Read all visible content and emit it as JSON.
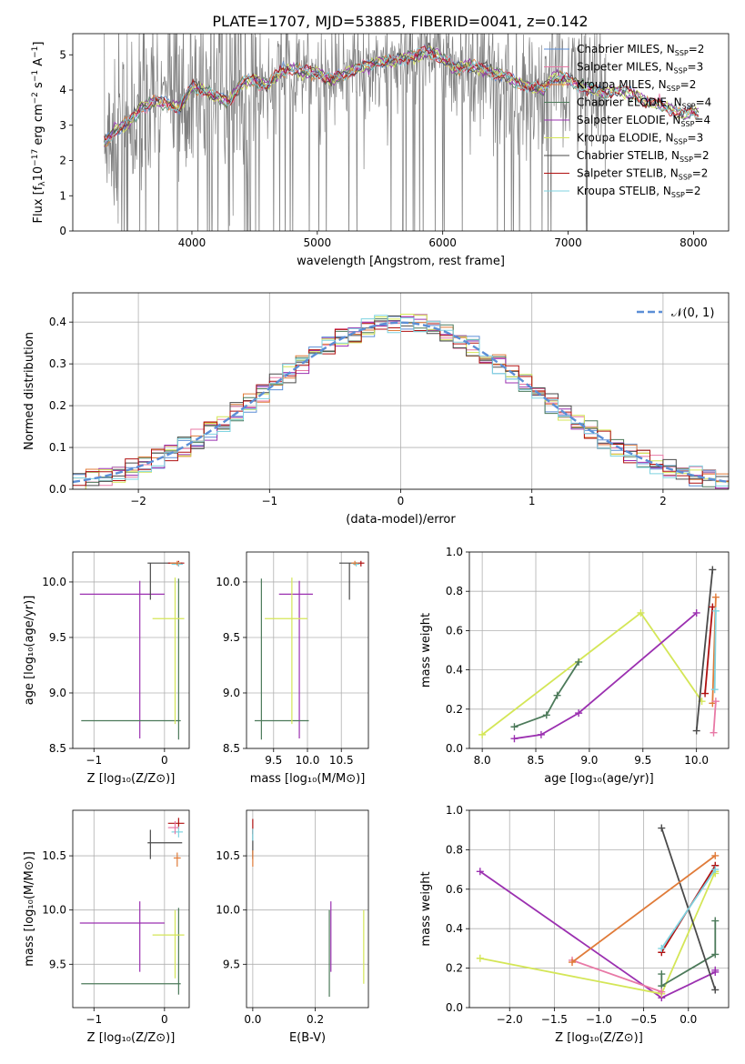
{
  "figure_title": "PLATE=1707, MJD=53885, FIBERID=0041, z=0.142",
  "legend": {
    "spectrum": [
      {
        "label": "Chabrier MILES, N",
        "sub": "SSP",
        "suffix": "=2",
        "color": "#5b8ed6"
      },
      {
        "label": "Salpeter MILES, N",
        "sub": "SSP",
        "suffix": "=3",
        "color": "#e879a6"
      },
      {
        "label": "Kroupa MILES, N",
        "sub": "SSP",
        "suffix": "=2",
        "color": "#e07b39"
      },
      {
        "label": "Chabrier ELODIE, N",
        "sub": "SSP",
        "suffix": "=4",
        "color": "#4c7a5a"
      },
      {
        "label": "Salpeter ELODIE, N",
        "sub": "SSP",
        "suffix": "=4",
        "color": "#9b30b0"
      },
      {
        "label": "Kroupa ELODIE, N",
        "sub": "SSP",
        "suffix": "=3",
        "color": "#d4e657"
      },
      {
        "label": "Chabrier STELIB, N",
        "sub": "SSP",
        "suffix": "=2",
        "color": "#4a4a4a"
      },
      {
        "label": "Salpeter STELIB, N",
        "sub": "SSP",
        "suffix": "=2",
        "color": "#b01010"
      },
      {
        "label": "Kroupa STELIB, N",
        "sub": "SSP",
        "suffix": "=2",
        "color": "#7fd3e0"
      }
    ],
    "normal": "𝒩(0, 1)"
  },
  "chart_data": [
    {
      "id": "spectrum",
      "type": "line",
      "xlabel": "wavelength [Angstrom, rest frame]",
      "ylabel_parts": [
        "Flux [f",
        "λ",
        "10",
        "−17",
        " erg cm",
        "−2",
        " s",
        "−1",
        " A",
        "−1",
        "]"
      ],
      "xlim": [
        3050,
        8280
      ],
      "ylim": [
        0,
        5.6
      ],
      "xticks": [
        4000,
        5000,
        6000,
        7000,
        8000
      ],
      "yticks": [
        0,
        1,
        2,
        3,
        4,
        5
      ],
      "model_x": [
        3300,
        3400,
        3500,
        3600,
        3700,
        3800,
        3900,
        4000,
        4100,
        4200,
        4300,
        4400,
        4500,
        4600,
        4700,
        4800,
        4900,
        5000,
        5100,
        5200,
        5300,
        5400,
        5500,
        5600,
        5700,
        5800,
        5900,
        6000,
        6100,
        6200,
        6300,
        6400,
        6500,
        6600,
        6700,
        6800,
        6900,
        7000,
        7100,
        7200,
        7300,
        7400,
        7500,
        7600,
        7700,
        7800,
        7900,
        8000,
        8050
      ],
      "model_y": [
        2.5,
        2.9,
        3.1,
        3.5,
        3.7,
        3.6,
        3.5,
        4.1,
        4.0,
        3.8,
        3.7,
        4.2,
        4.3,
        4.1,
        4.5,
        4.6,
        4.5,
        4.5,
        4.3,
        4.4,
        4.6,
        4.7,
        4.8,
        4.8,
        4.9,
        5.0,
        5.1,
        4.9,
        4.6,
        4.7,
        4.6,
        4.5,
        4.4,
        4.2,
        4.1,
        4.0,
        4.4,
        4.3,
        4.1,
        4.0,
        3.9,
        4.0,
        3.9,
        3.7,
        3.6,
        3.5,
        3.3,
        3.4,
        3.3
      ],
      "series": [
        "Chabrier MILES",
        "Salpeter MILES",
        "Kroupa MILES",
        "Chabrier ELODIE",
        "Salpeter ELODIE",
        "Kroupa ELODIE",
        "Chabrier STELIB",
        "Salpeter STELIB",
        "Kroupa STELIB"
      ],
      "data_noise": {
        "x_range": [
          3300,
          7300
        ],
        "color": "#808080"
      }
    },
    {
      "id": "residuals",
      "type": "histogram",
      "xlabel": "(data-model)/error",
      "ylabel": "Normed distribution",
      "xlim": [
        -2.5,
        2.5
      ],
      "ylim": [
        0,
        0.47
      ],
      "xticks": [
        -2,
        -1,
        0,
        1,
        2
      ],
      "yticks": [
        0.0,
        0.1,
        0.2,
        0.3,
        0.4
      ],
      "grid": true,
      "bin_width": 0.1,
      "reference": {
        "type": "gaussian",
        "mean": 0,
        "sigma": 1,
        "color": "#5b8ed6"
      },
      "series": [
        "Chabrier MILES",
        "Salpeter MILES",
        "Kroupa MILES",
        "Chabrier ELODIE",
        "Salpeter ELODIE",
        "Kroupa ELODIE",
        "Chabrier STELIB",
        "Salpeter STELIB",
        "Kroupa STELIB"
      ]
    },
    {
      "id": "z-age",
      "type": "errorbar",
      "xlabel": "Z [log₁₀(Z/Z⊙)]",
      "ylabel": "age  [log₁₀(age/yr)]",
      "xlim": [
        -1.3,
        0.35
      ],
      "ylim": [
        8.5,
        10.27
      ],
      "xticks": [
        -1,
        0
      ],
      "xticklabels": [
        "−1",
        "0"
      ],
      "yticks": [
        8.5,
        9.0,
        9.5,
        10.0
      ],
      "grid": true,
      "points": [
        {
          "series": "Salpeter ELODIE",
          "x": -0.35,
          "xerr": [
            0.85,
            0.35
          ],
          "y": 9.89,
          "yerr": [
            1.3,
            0.12
          ],
          "color": "#9b30b0"
        },
        {
          "series": "Chabrier ELODIE",
          "x": 0.2,
          "xerr": [
            1.38,
            0.03
          ],
          "y": 8.75,
          "yerr": [
            0.17,
            1.28
          ],
          "color": "#4c7a5a"
        },
        {
          "series": "Kroupa ELODIE",
          "x": 0.15,
          "xerr": [
            0.32,
            0.13
          ],
          "y": 9.67,
          "yerr": [
            0.95,
            0.37
          ],
          "color": "#d4e657"
        },
        {
          "series": "Chabrier STELIB",
          "x": -0.2,
          "xerr": [
            0.04,
            0.45
          ],
          "y": 10.17,
          "yerr": [
            0.33,
            0.0
          ],
          "color": "#4a4a4a"
        },
        {
          "series": "Salpeter STELIB",
          "x": 0.2,
          "xerr": [
            0.15,
            0.08
          ],
          "y": 10.17,
          "yerr": [
            0.03,
            0.02
          ],
          "color": "#b01010"
        },
        {
          "series": "Kroupa STELIB",
          "x": 0.2,
          "xerr": [
            0.1,
            0.06
          ],
          "y": 10.16,
          "yerr": [
            0.02,
            0.02
          ],
          "color": "#7fd3e0"
        },
        {
          "series": "Kroupa MILES",
          "x": 0.18,
          "xerr": [
            0.1,
            0.05
          ],
          "y": 10.17,
          "yerr": [
            0.02,
            0.02
          ],
          "color": "#e07b39"
        }
      ]
    },
    {
      "id": "mass-age",
      "type": "errorbar",
      "xlabel": "mass [log₁₀(M/M⊙)]",
      "xlim": [
        9.1,
        10.9
      ],
      "ylim": [
        8.5,
        10.27
      ],
      "xticks": [
        9.5,
        10.0,
        10.5
      ],
      "yticks": [
        8.5,
        9.0,
        9.5,
        10.0
      ],
      "grid": true,
      "points": [
        {
          "series": "Salpeter ELODIE",
          "x": 9.88,
          "xerr": [
            0.3,
            0.2
          ],
          "y": 9.89,
          "yerr": [
            1.3,
            0.12
          ],
          "color": "#9b30b0"
        },
        {
          "series": "Chabrier ELODIE",
          "x": 9.32,
          "xerr": [
            0.1,
            0.7
          ],
          "y": 8.75,
          "yerr": [
            0.17,
            1.28
          ],
          "color": "#4c7a5a"
        },
        {
          "series": "Kroupa ELODIE",
          "x": 9.77,
          "xerr": [
            0.4,
            0.23
          ],
          "y": 9.67,
          "yerr": [
            0.95,
            0.37
          ],
          "color": "#d4e657"
        },
        {
          "series": "Chabrier STELIB",
          "x": 10.62,
          "xerr": [
            0.15,
            0.12
          ],
          "y": 10.17,
          "yerr": [
            0.33,
            0.0
          ],
          "color": "#4a4a4a"
        },
        {
          "series": "Salpeter STELIB",
          "x": 10.79,
          "xerr": [
            0.05,
            0.05
          ],
          "y": 10.17,
          "yerr": [
            0.03,
            0.02
          ],
          "color": "#b01010"
        },
        {
          "series": "Kroupa STELIB",
          "x": 10.72,
          "xerr": [
            0.05,
            0.05
          ],
          "y": 10.16,
          "yerr": [
            0.02,
            0.02
          ],
          "color": "#7fd3e0"
        },
        {
          "series": "Kroupa MILES",
          "x": 10.7,
          "xerr": [
            0.05,
            0.05
          ],
          "y": 10.17,
          "yerr": [
            0.02,
            0.02
          ],
          "color": "#e07b39"
        }
      ]
    },
    {
      "id": "age-weight",
      "type": "line",
      "xlabel": "age  [log₁₀(age/yr)]",
      "ylabel": "mass weight",
      "xlim": [
        7.88,
        10.3
      ],
      "ylim": [
        0,
        1
      ],
      "xticks": [
        8.0,
        8.5,
        9.0,
        9.5,
        10.0
      ],
      "yticks": [
        0.0,
        0.2,
        0.4,
        0.6,
        0.8,
        1.0
      ],
      "grid": true,
      "series": [
        {
          "name": "Kroupa ELODIE",
          "color": "#d4e657",
          "x": [
            8.0,
            9.48,
            10.05
          ],
          "y": [
            0.07,
            0.69,
            0.24
          ]
        },
        {
          "name": "Chabrier ELODIE",
          "color": "#4c7a5a",
          "x": [
            8.3,
            8.6,
            8.7,
            8.9
          ],
          "y": [
            0.11,
            0.17,
            0.27,
            0.44
          ]
        },
        {
          "name": "Salpeter ELODIE",
          "color": "#9b30b0",
          "x": [
            8.3,
            8.55,
            8.9,
            10.0
          ],
          "y": [
            0.05,
            0.07,
            0.18,
            0.69
          ]
        },
        {
          "name": "Chabrier STELIB",
          "color": "#4a4a4a",
          "x": [
            10.0,
            10.15
          ],
          "y": [
            0.09,
            0.91
          ]
        },
        {
          "name": "Salpeter STELIB",
          "color": "#b01010",
          "x": [
            10.08,
            10.15
          ],
          "y": [
            0.28,
            0.72
          ]
        },
        {
          "name": "Kroupa MILES",
          "color": "#e07b39",
          "x": [
            10.15,
            10.18
          ],
          "y": [
            0.23,
            0.77
          ]
        },
        {
          "name": "Salpeter MILES",
          "color": "#e879a6",
          "x": [
            10.16,
            10.18
          ],
          "y": [
            0.08,
            0.24
          ]
        },
        {
          "name": "Kroupa STELIB",
          "color": "#7fd3e0",
          "x": [
            10.17,
            10.18
          ],
          "y": [
            0.3,
            0.7
          ]
        }
      ]
    },
    {
      "id": "z-mass",
      "type": "errorbar",
      "xlabel": "Z [log₁₀(Z/Z⊙)]",
      "ylabel": "mass [log₁₀(M/M⊙)]",
      "xlim": [
        -1.3,
        0.35
      ],
      "ylim": [
        9.1,
        10.92
      ],
      "xticks": [
        -1,
        0
      ],
      "xticklabels": [
        "−1",
        "0"
      ],
      "yticks": [
        9.5,
        10.0,
        10.5
      ],
      "grid": true,
      "points": [
        {
          "series": "Salpeter ELODIE",
          "x": -0.35,
          "xerr": [
            0.85,
            0.35
          ],
          "y": 9.88,
          "yerr": [
            0.45,
            0.2
          ],
          "color": "#9b30b0"
        },
        {
          "series": "Chabrier ELODIE",
          "x": 0.2,
          "xerr": [
            1.38,
            0.03
          ],
          "y": 9.32,
          "yerr": [
            0.1,
            0.7
          ],
          "color": "#4c7a5a"
        },
        {
          "series": "Kroupa ELODIE",
          "x": 0.15,
          "xerr": [
            0.32,
            0.13
          ],
          "y": 9.77,
          "yerr": [
            0.4,
            0.23
          ],
          "color": "#d4e657"
        },
        {
          "series": "Chabrier STELIB",
          "x": -0.2,
          "xerr": [
            0.04,
            0.45
          ],
          "y": 10.62,
          "yerr": [
            0.15,
            0.12
          ],
          "color": "#4a4a4a"
        },
        {
          "series": "Salpeter STELIB",
          "x": 0.2,
          "xerr": [
            0.15,
            0.08
          ],
          "y": 10.8,
          "yerr": [
            0.05,
            0.05
          ],
          "color": "#b01010"
        },
        {
          "series": "Kroupa STELIB",
          "x": 0.2,
          "xerr": [
            0.1,
            0.06
          ],
          "y": 10.72,
          "yerr": [
            0.05,
            0.05
          ],
          "color": "#7fd3e0"
        },
        {
          "series": "Salpeter MILES",
          "x": 0.15,
          "xerr": [
            0.1,
            0.05
          ],
          "y": 10.76,
          "yerr": [
            0.06,
            0.06
          ],
          "color": "#e879a6"
        },
        {
          "series": "Kroupa MILES",
          "x": 0.18,
          "xerr": [
            0.05,
            0.05
          ],
          "y": 10.48,
          "yerr": [
            0.08,
            0.05
          ],
          "color": "#e07b39"
        }
      ]
    },
    {
      "id": "ebv-mass",
      "type": "errorbar",
      "xlabel": "E(B-V)",
      "xlim": [
        -0.02,
        0.37
      ],
      "ylim": [
        9.1,
        10.92
      ],
      "xticks": [
        0.0,
        0.2
      ],
      "yticks": [
        9.5,
        10.0,
        10.5
      ],
      "grid": true,
      "points": [
        {
          "series": "Salpeter ELODIE",
          "x": 0.25,
          "xerr": [
            0,
            0
          ],
          "y": 9.88,
          "yerr": [
            0.45,
            0.2
          ],
          "color": "#9b30b0"
        },
        {
          "series": "Chabrier ELODIE",
          "x": 0.245,
          "xerr": [
            0,
            0
          ],
          "y": 9.6,
          "yerr": [
            0.4,
            0.4
          ],
          "color": "#4c7a5a"
        },
        {
          "series": "Kroupa ELODIE",
          "x": 0.355,
          "xerr": [
            0,
            0
          ],
          "y": 9.67,
          "yerr": [
            0.35,
            0.33
          ],
          "color": "#d4e657"
        },
        {
          "series": "Chabrier STELIB",
          "x": 0.0,
          "xerr": [
            0,
            0
          ],
          "y": 10.62,
          "yerr": [
            0.15,
            0.12
          ],
          "color": "#4a4a4a"
        },
        {
          "series": "Salpeter STELIB",
          "x": 0.0,
          "xerr": [
            0,
            0
          ],
          "y": 10.78,
          "yerr": [
            0.08,
            0.06
          ],
          "color": "#b01010"
        },
        {
          "series": "Kroupa STELIB",
          "x": 0.0,
          "xerr": [
            0,
            0
          ],
          "y": 10.7,
          "yerr": [
            0.06,
            0.05
          ],
          "color": "#7fd3e0"
        },
        {
          "series": "Kroupa MILES",
          "x": 0.0,
          "xerr": [
            0,
            0
          ],
          "y": 10.5,
          "yerr": [
            0.1,
            0.05
          ],
          "color": "#e07b39"
        }
      ]
    },
    {
      "id": "z-weight",
      "type": "line",
      "xlabel": "Z [log₁₀(Z/Z⊙)]",
      "ylabel": "mass weight",
      "xlim": [
        -2.45,
        0.45
      ],
      "ylim": [
        0,
        1
      ],
      "xticks": [
        -2.0,
        -1.5,
        -1.0,
        -0.5,
        0.0
      ],
      "xticklabels": [
        "−2.0",
        "−1.5",
        "−1.0",
        "−0.5",
        "0.0"
      ],
      "yticks": [
        0.0,
        0.2,
        0.4,
        0.6,
        0.8,
        1.0
      ],
      "grid": true,
      "series": [
        {
          "name": "Salpeter ELODIE",
          "color": "#9b30b0",
          "x": [
            -2.33,
            -0.3,
            0.3,
            0.3
          ],
          "y": [
            0.69,
            0.05,
            0.18,
            0.19
          ]
        },
        {
          "name": "Kroupa ELODIE",
          "color": "#d4e657",
          "x": [
            -2.33,
            -0.3,
            0.3,
            0.3
          ],
          "y": [
            0.25,
            0.07,
            0.69,
            0.68
          ]
        },
        {
          "name": "Chabrier ELODIE",
          "color": "#4c7a5a",
          "x": [
            -0.3,
            -0.3,
            0.3,
            0.3
          ],
          "y": [
            0.17,
            0.11,
            0.27,
            0.44
          ]
        },
        {
          "name": "Chabrier STELIB",
          "color": "#4a4a4a",
          "x": [
            -0.3,
            0.3
          ],
          "y": [
            0.91,
            0.09
          ]
        },
        {
          "name": "Salpeter STELIB",
          "color": "#b01010",
          "x": [
            -0.3,
            0.3
          ],
          "y": [
            0.28,
            0.72
          ]
        },
        {
          "name": "Kroupa STELIB",
          "color": "#7fd3e0",
          "x": [
            -0.3,
            0.3
          ],
          "y": [
            0.3,
            0.7
          ]
        },
        {
          "name": "Salpeter MILES",
          "color": "#e879a6",
          "x": [
            -1.3,
            -0.3
          ],
          "y": [
            0.24,
            0.08
          ]
        },
        {
          "name": "Kroupa MILES",
          "color": "#e07b39",
          "x": [
            -1.3,
            0.3
          ],
          "y": [
            0.23,
            0.77
          ]
        }
      ]
    }
  ]
}
